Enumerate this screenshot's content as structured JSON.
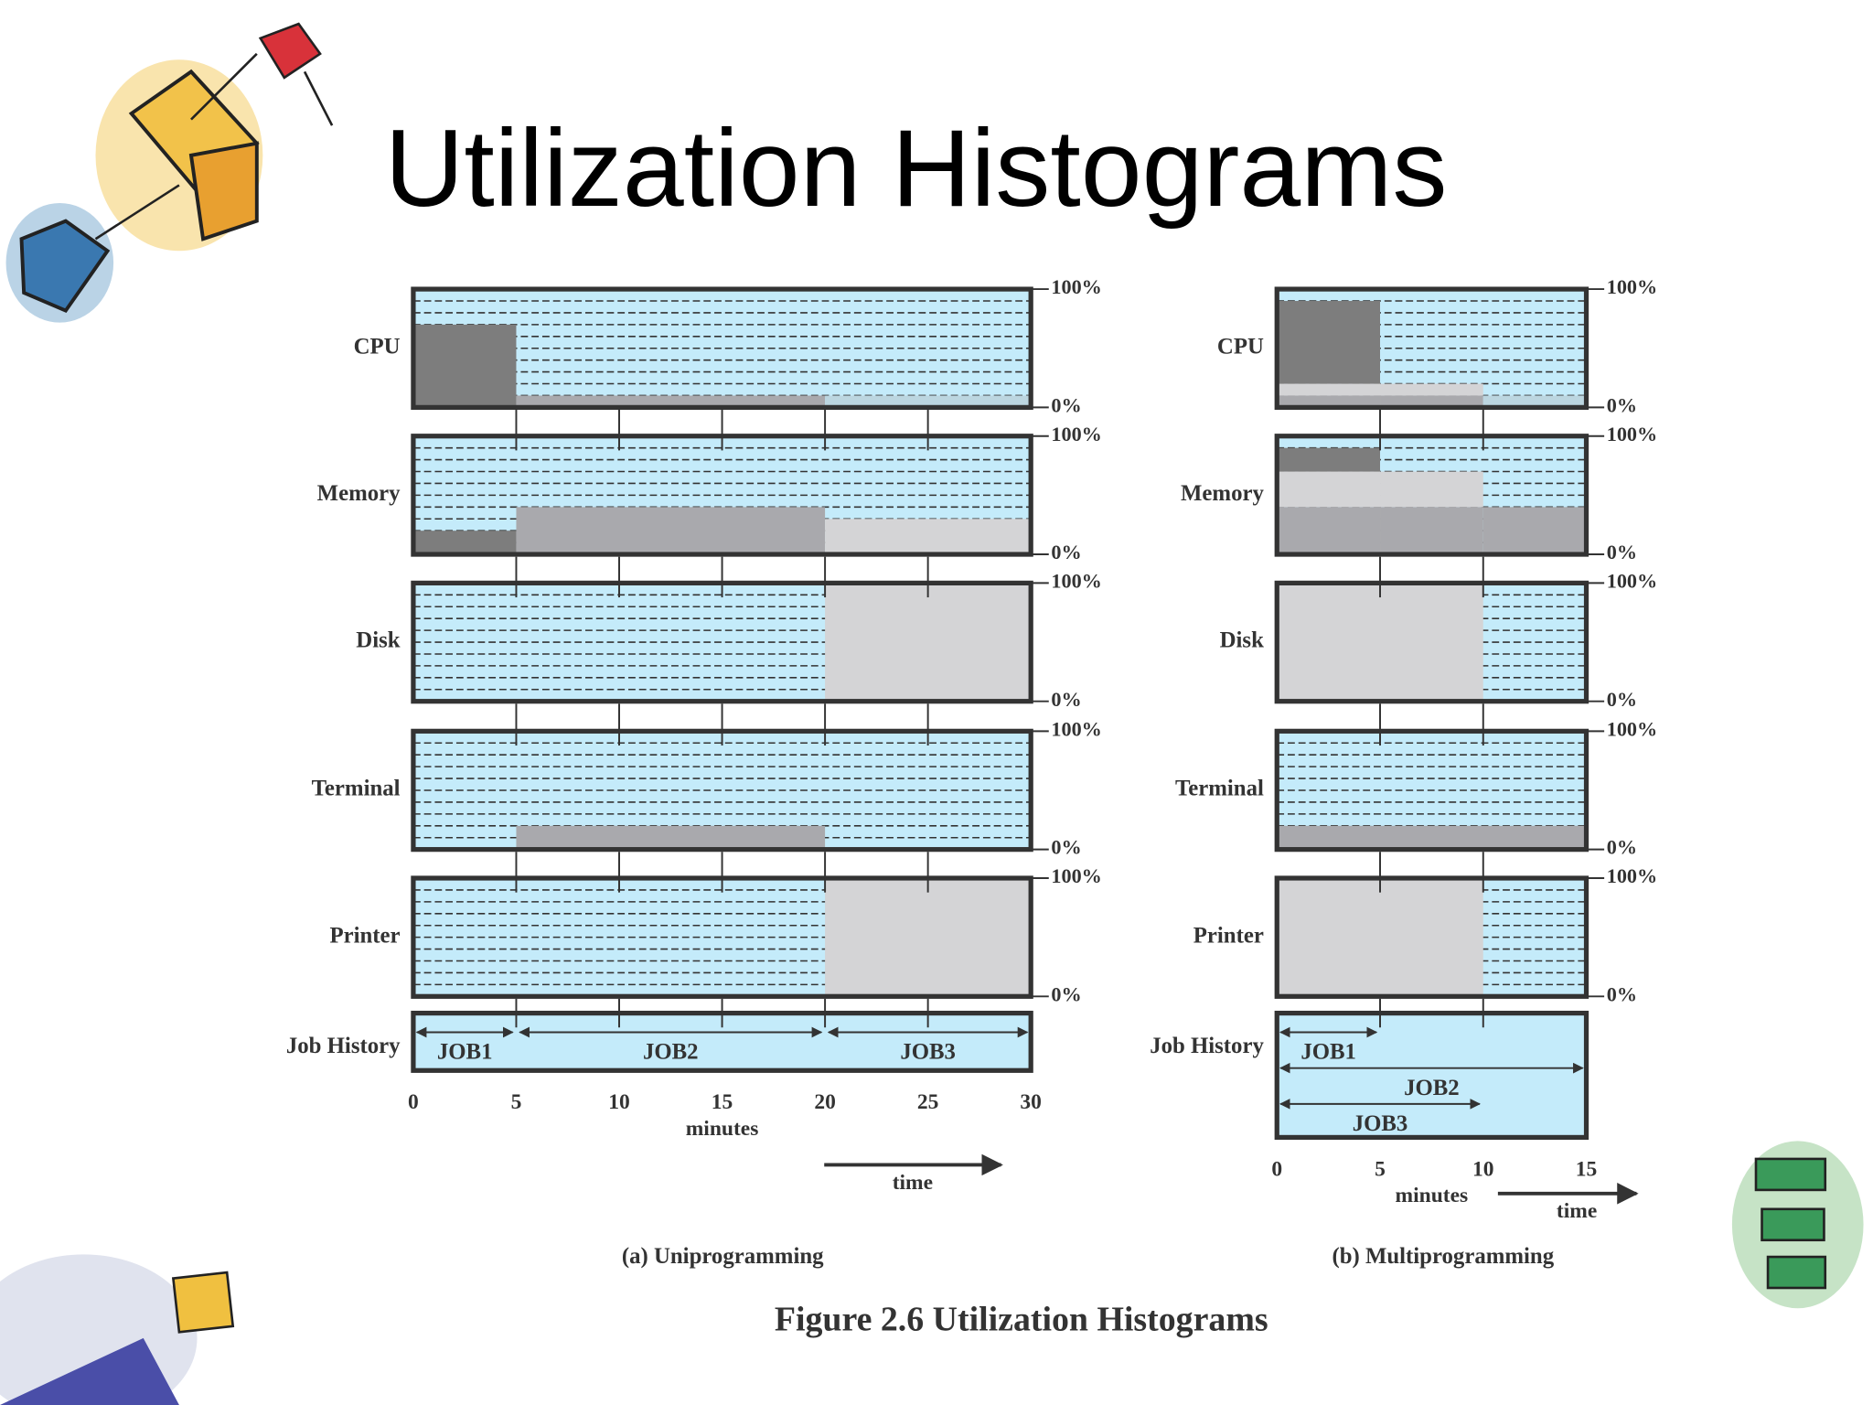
{
  "title": "Utilization Histograms",
  "caption": "Figure 2.6  Utilization Histograms",
  "scale": {
    "top_label": "100%",
    "bottom_label": "0%",
    "ylim": [
      0,
      100
    ]
  },
  "job_history_label": "Job History",
  "background_color": "#c4ebfa",
  "panels": [
    {
      "subtitle": "(a) Uniprogramming",
      "x_label": "minutes",
      "arrow_label": "time",
      "xlim": [
        0,
        30
      ],
      "xticks": [
        0,
        5,
        10,
        15,
        20,
        25,
        30
      ],
      "resources": [
        {
          "name": "CPU",
          "segments": [
            {
              "start": 0,
              "end": 5,
              "level": 70,
              "color": "#7d7d7d"
            },
            {
              "start": 5,
              "end": 20,
              "level": 10,
              "color": "#a9a9ad"
            },
            {
              "start": 20,
              "end": 30,
              "level": 10,
              "color": "#bcd6e0"
            }
          ]
        },
        {
          "name": "Memory",
          "segments": [
            {
              "start": 0,
              "end": 5,
              "level": 20,
              "color": "#7d7d7d"
            },
            {
              "start": 5,
              "end": 20,
              "level": 40,
              "color": "#a9a9ad"
            },
            {
              "start": 20,
              "end": 30,
              "level": 30,
              "color": "#d4d4d6"
            }
          ]
        },
        {
          "name": "Disk",
          "segments": [
            {
              "start": 20,
              "end": 30,
              "level": 100,
              "color": "#d4d4d6"
            }
          ]
        },
        {
          "name": "Terminal",
          "segments": [
            {
              "start": 5,
              "end": 20,
              "level": 20,
              "color": "#a9a9ad"
            }
          ]
        },
        {
          "name": "Printer",
          "segments": [
            {
              "start": 20,
              "end": 30,
              "level": 100,
              "color": "#d4d4d6"
            }
          ]
        }
      ],
      "jobs": [
        {
          "name": "JOB1",
          "start": 0,
          "end": 5
        },
        {
          "name": "JOB2",
          "start": 5,
          "end": 20
        },
        {
          "name": "JOB3",
          "start": 20,
          "end": 30
        }
      ]
    },
    {
      "subtitle": "(b) Multiprogramming",
      "x_label": "minutes",
      "arrow_label": "time",
      "xlim": [
        0,
        15
      ],
      "xticks": [
        0,
        5,
        10,
        15
      ],
      "resources": [
        {
          "name": "CPU",
          "segments": [
            {
              "start": 0,
              "end": 5,
              "level": 10,
              "color": "#a9a9ad"
            },
            {
              "start": 0,
              "end": 5,
              "level": 10,
              "color": "#d4d4d6"
            },
            {
              "start": 0,
              "end": 5,
              "level": 70,
              "color": "#7d7d7d"
            },
            {
              "start": 5,
              "end": 10,
              "level": 10,
              "color": "#a9a9ad"
            },
            {
              "start": 5,
              "end": 10,
              "level": 10,
              "color": "#d4d4d6"
            },
            {
              "start": 10,
              "end": 15,
              "level": 10,
              "color": "#bcd6e0"
            }
          ]
        },
        {
          "name": "Memory",
          "segments": [
            {
              "start": 0,
              "end": 5,
              "level": 40,
              "color": "#a9a9ad"
            },
            {
              "start": 0,
              "end": 5,
              "level": 30,
              "color": "#d4d4d6"
            },
            {
              "start": 0,
              "end": 5,
              "level": 20,
              "color": "#7d7d7d"
            },
            {
              "start": 5,
              "end": 10,
              "level": 40,
              "color": "#a9a9ad"
            },
            {
              "start": 5,
              "end": 10,
              "level": 30,
              "color": "#d4d4d6"
            },
            {
              "start": 10,
              "end": 15,
              "level": 40,
              "color": "#a9a9ad"
            }
          ]
        },
        {
          "name": "Disk",
          "segments": [
            {
              "start": 0,
              "end": 10,
              "level": 100,
              "color": "#d4d4d6"
            }
          ]
        },
        {
          "name": "Terminal",
          "segments": [
            {
              "start": 0,
              "end": 15,
              "level": 20,
              "color": "#a9a9ad"
            }
          ]
        },
        {
          "name": "Printer",
          "segments": [
            {
              "start": 0,
              "end": 10,
              "level": 100,
              "color": "#d4d4d6"
            }
          ]
        }
      ],
      "jobs": [
        {
          "name": "JOB1",
          "start": 0,
          "end": 5
        },
        {
          "name": "JOB2",
          "start": 0,
          "end": 15
        },
        {
          "name": "JOB3",
          "start": 0,
          "end": 10
        }
      ]
    }
  ]
}
